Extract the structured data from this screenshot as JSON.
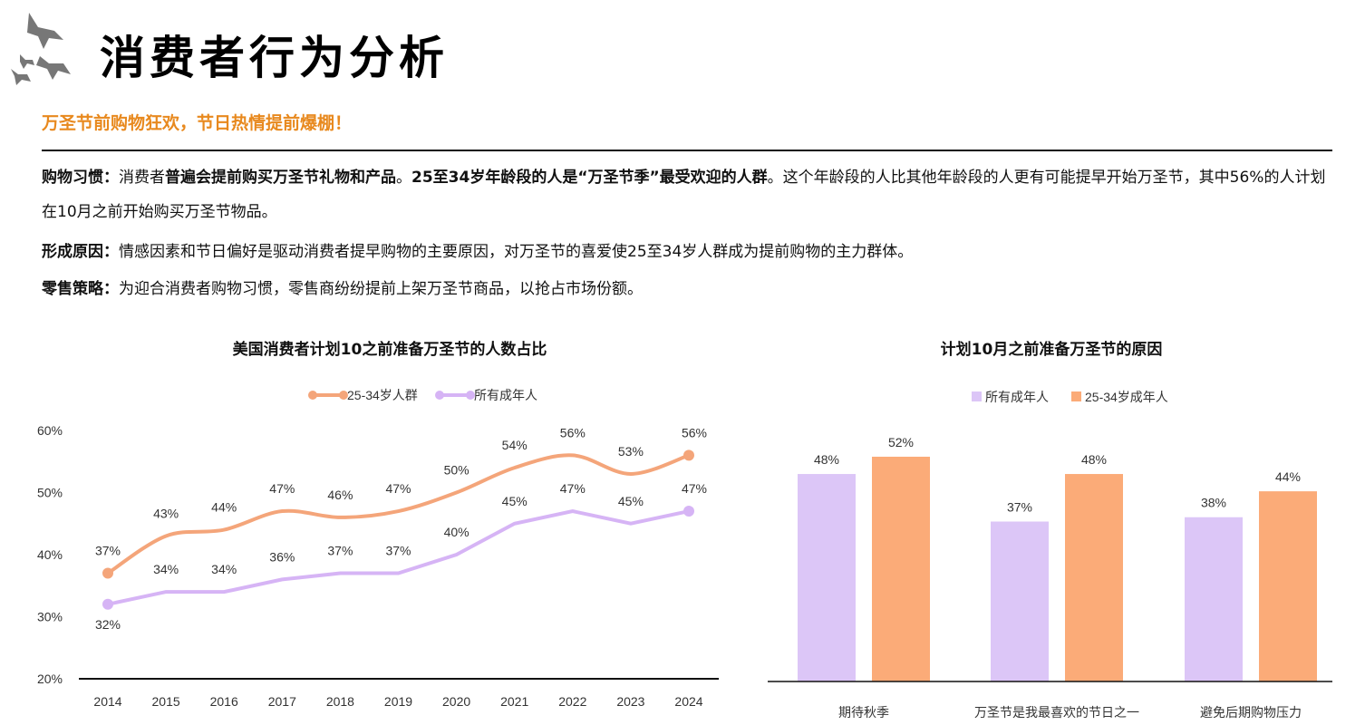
{
  "header": {
    "title": "消费者行为分析",
    "subtitle": "万圣节前购物狂欢，节日热情提前爆棚！",
    "accent_color": "#e8891e",
    "logo_icon": "bats-icon"
  },
  "paragraphs": [
    {
      "segments": [
        {
          "text": "购物习惯：",
          "bold": true
        },
        {
          "text": "消费者",
          "bold": false
        },
        {
          "text": "普遍会提前购买万圣节礼物和产品",
          "bold": true
        },
        {
          "text": "。",
          "bold": false
        },
        {
          "text": "25至34岁年龄段的人是“万圣节季”最受欢迎的人群",
          "bold": true
        },
        {
          "text": "。这个年龄段的人比其他年龄段的人更有可能提早开始万圣节，其中56%的人计划在10月之前开始购买万圣节物品。",
          "bold": false
        }
      ]
    },
    {
      "segments": [
        {
          "text": "形成原因：",
          "bold": true
        },
        {
          "text": "情感因素和节日偏好是驱动消费者提早购物的主要原因，对万圣节的喜爱使25至34岁人群成为提前购物的主力群体。",
          "bold": false
        }
      ]
    },
    {
      "segments": [
        {
          "text": "零售策略：",
          "bold": true
        },
        {
          "text": "为迎合消费者购物习惯，零售商纷纷提前上架万圣节商品，以抢占市场份额。",
          "bold": false
        }
      ]
    }
  ],
  "chart_data": [
    {
      "type": "line",
      "title": "美国消费者计划10之前准备万圣节的人数占比",
      "categories": [
        "2014",
        "2015",
        "2016",
        "2017",
        "2018",
        "2019",
        "2020",
        "2021",
        "2022",
        "2023",
        "2024"
      ],
      "series": [
        {
          "name": "25-34岁人群",
          "color": "#f4a57a",
          "values": [
            37,
            43,
            44,
            47,
            46,
            47,
            50,
            54,
            56,
            53,
            56
          ]
        },
        {
          "name": "所有成年人",
          "color": "#d6b4f5",
          "values": [
            32,
            34,
            34,
            36,
            37,
            37,
            40,
            45,
            47,
            45,
            47
          ]
        }
      ],
      "ylim": [
        20,
        60
      ],
      "yticks": [
        "20%",
        "30%",
        "40%",
        "50%",
        "60%"
      ],
      "legend": "top",
      "grid": false
    },
    {
      "type": "bar",
      "title": "计划10月之前准备万圣节的原因",
      "categories": [
        "期待秋季",
        "万圣节是我最喜欢的节日之一",
        "避免后期购物压力"
      ],
      "series": [
        {
          "name": "所有成年人",
          "color": "#dcc6f7",
          "values": [
            48,
            37,
            38
          ]
        },
        {
          "name": "25-34岁成年人",
          "color": "#fbab78",
          "values": [
            52,
            48,
            44
          ]
        }
      ],
      "ylim": [
        0,
        100
      ],
      "legend": "top",
      "grid": false
    }
  ]
}
